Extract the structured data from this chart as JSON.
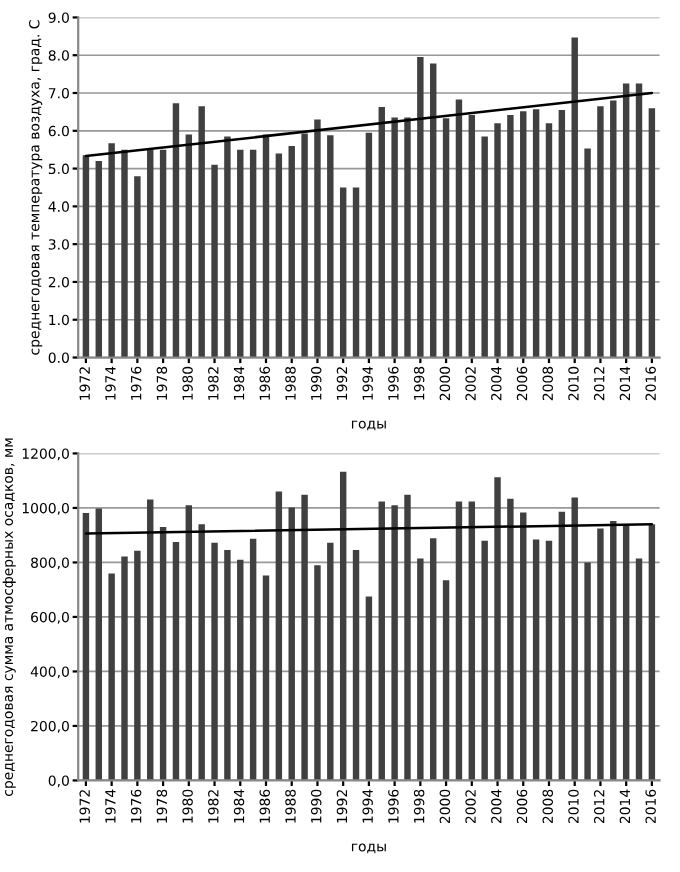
{
  "chart_data": [
    {
      "type": "bar",
      "xlabel": "годы",
      "ylabel": "среднегодовая температура воздуха, град. С",
      "categories": [
        "1972",
        null,
        "1974",
        null,
        "1976",
        null,
        "1978",
        null,
        "1980",
        null,
        "1982",
        null,
        "1984",
        null,
        "1986",
        null,
        "1988",
        null,
        "1990",
        null,
        "1992",
        null,
        "1994",
        null,
        "1996",
        null,
        "1998",
        null,
        "2000",
        null,
        "2002",
        null,
        "2004",
        null,
        "2006",
        null,
        "2008",
        null,
        "2010",
        null,
        "2012",
        null,
        "2014",
        null,
        "2016"
      ],
      "series": [
        {
          "color": "#404040",
          "values": [
            5.35,
            5.2,
            5.67,
            5.5,
            4.8,
            5.5,
            5.5,
            6.73,
            5.9,
            6.65,
            5.1,
            5.85,
            5.5,
            5.5,
            5.9,
            5.4,
            5.6,
            5.93,
            6.3,
            5.88,
            4.5,
            4.5,
            5.95,
            6.63,
            6.35,
            6.35,
            7.95,
            7.78,
            6.33,
            6.83,
            6.42,
            5.85,
            6.2,
            6.42,
            6.52,
            6.57,
            6.2,
            6.55,
            8.47,
            5.53,
            6.65,
            6.8,
            7.25,
            7.25,
            6.6
          ]
        },
        {
          "type": "line",
          "color": "#000000",
          "values": [
            5.33,
            null,
            null,
            null,
            null,
            null,
            null,
            null,
            null,
            null,
            null,
            null,
            null,
            null,
            null,
            null,
            null,
            null,
            null,
            null,
            null,
            null,
            null,
            null,
            null,
            null,
            null,
            null,
            null,
            null,
            null,
            null,
            null,
            null,
            null,
            null,
            null,
            null,
            null,
            null,
            null,
            null,
            null,
            null,
            7.0
          ]
        }
      ],
      "ylim": [
        0,
        9
      ],
      "yticks": [
        {
          "value": 0,
          "label": "0.0"
        },
        {
          "value": 1,
          "label": "1.0"
        },
        {
          "value": 2,
          "label": "2.0"
        },
        {
          "value": 3,
          "label": "3.0"
        },
        {
          "value": 4,
          "label": "4.0"
        },
        {
          "value": 5,
          "label": "5.0"
        },
        {
          "value": 6,
          "label": "6.0"
        },
        {
          "value": 7,
          "label": "7.0"
        },
        {
          "value": 8,
          "label": "8.0"
        },
        {
          "value": 9,
          "label": "9.0"
        }
      ],
      "grid": "y"
    },
    {
      "type": "bar",
      "xlabel": "годы",
      "ylabel": "среднегодовая сумма атмосферных осадков, мм",
      "categories": [
        "1972",
        null,
        "1974",
        null,
        "1976",
        null,
        "1978",
        null,
        "1980",
        null,
        "1982",
        null,
        "1984",
        null,
        "1986",
        null,
        "1988",
        null,
        "1990",
        null,
        "1992",
        null,
        "1994",
        null,
        "1996",
        null,
        "1998",
        null,
        "2000",
        null,
        "2002",
        null,
        "2004",
        null,
        "2006",
        null,
        "2008",
        null,
        "2010",
        null,
        "2012",
        null,
        "2014",
        null,
        "2016"
      ],
      "series": [
        {
          "color": "#404040",
          "values": [
            981,
            998,
            759,
            822,
            843,
            1031,
            930,
            875,
            1010,
            940,
            872,
            846,
            810,
            887,
            752,
            1060,
            1002,
            1048,
            790,
            872,
            1133,
            846,
            675,
            1024,
            1010,
            1048,
            814,
            889,
            735,
            1024,
            1024,
            880,
            1113,
            1034,
            983,
            884,
            880,
            986,
            1038,
            800,
            925,
            952,
            940,
            814,
            940
          ]
        },
        {
          "type": "line",
          "color": "#000000",
          "values": [
            906,
            null,
            null,
            null,
            null,
            null,
            null,
            null,
            null,
            null,
            null,
            null,
            null,
            null,
            null,
            null,
            null,
            null,
            null,
            null,
            null,
            null,
            null,
            null,
            null,
            null,
            null,
            null,
            null,
            null,
            null,
            null,
            null,
            null,
            null,
            null,
            null,
            null,
            null,
            null,
            null,
            null,
            null,
            null,
            940
          ]
        }
      ],
      "ylim": [
        0,
        1200
      ],
      "yticks": [
        {
          "value": 0,
          "label": "0,0"
        },
        {
          "value": 200,
          "label": "200,0"
        },
        {
          "value": 400,
          "label": "400,0"
        },
        {
          "value": 600,
          "label": "600,0"
        },
        {
          "value": 800,
          "label": "800,0"
        },
        {
          "value": 1000,
          "label": "1000,0"
        },
        {
          "value": 1200,
          "label": "1200,0"
        }
      ],
      "grid": "y"
    }
  ]
}
